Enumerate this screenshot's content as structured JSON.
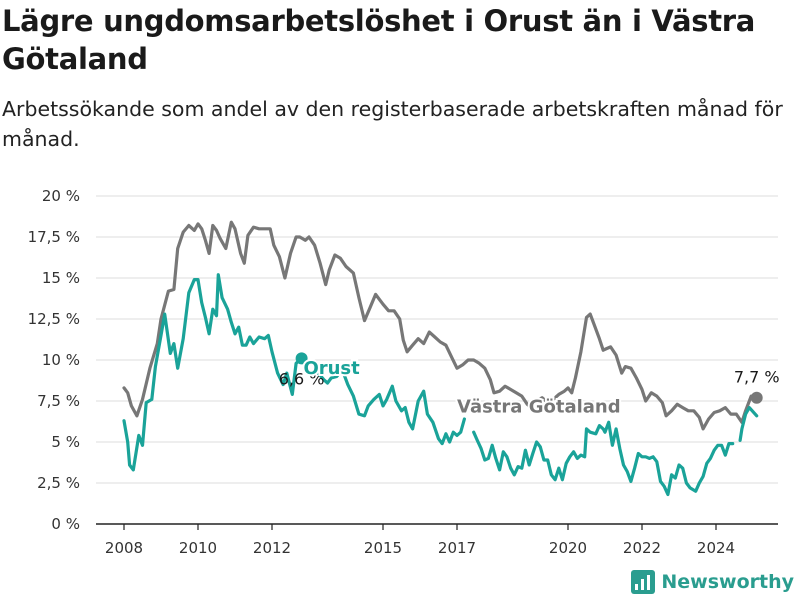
{
  "title": "Lägre ungdomsarbetslöshet i Orust än i Västra Götaland",
  "subtitle": "Arbetssökande som andel av den registerbaserade arbetskraften månad för månad.",
  "brand": "Newsworthy",
  "colors": {
    "vastra_gotaland": "#777777",
    "orust": "#1aa399",
    "grid": "#dddddd",
    "brand": "#2a9d8f"
  },
  "chart_data": {
    "type": "line",
    "title": "",
    "xlabel": "",
    "ylabel": "",
    "xlim": [
      2008,
      2025.5
    ],
    "ylim": [
      0,
      20
    ],
    "y_ticks": [
      0,
      2.5,
      5,
      7.5,
      10,
      12.5,
      15,
      17.5,
      20
    ],
    "y_tick_labels": [
      "0 %",
      "2,5 %",
      "5 %",
      "7,5 %",
      "10 %",
      "12,5 %",
      "15 %",
      "17,5 %",
      "20 %"
    ],
    "x_ticks": [
      2008,
      2010,
      2012,
      2015,
      2017,
      2020,
      2022,
      2024
    ],
    "x_tick_labels": [
      "2008",
      "2010",
      "2012",
      "2015",
      "2017",
      "2020",
      "2022",
      "2024"
    ],
    "grid": true,
    "series": [
      {
        "name": "Västra Götaland",
        "end_label": "7,7 %",
        "points": [
          [
            2008.0,
            8.3
          ],
          [
            2008.1,
            8.0
          ],
          [
            2008.2,
            7.2
          ],
          [
            2008.35,
            6.6
          ],
          [
            2008.5,
            7.6
          ],
          [
            2008.7,
            9.5
          ],
          [
            2008.9,
            11.0
          ],
          [
            2009.0,
            12.5
          ],
          [
            2009.2,
            14.2
          ],
          [
            2009.35,
            14.3
          ],
          [
            2009.45,
            16.8
          ],
          [
            2009.6,
            17.8
          ],
          [
            2009.75,
            18.2
          ],
          [
            2009.9,
            17.9
          ],
          [
            2010.0,
            18.3
          ],
          [
            2010.1,
            18.0
          ],
          [
            2010.2,
            17.3
          ],
          [
            2010.3,
            16.5
          ],
          [
            2010.4,
            18.2
          ],
          [
            2010.5,
            17.9
          ],
          [
            2010.6,
            17.4
          ],
          [
            2010.75,
            16.8
          ],
          [
            2010.9,
            18.4
          ],
          [
            2011.0,
            18.0
          ],
          [
            2011.15,
            16.5
          ],
          [
            2011.25,
            15.9
          ],
          [
            2011.35,
            17.6
          ],
          [
            2011.5,
            18.1
          ],
          [
            2011.65,
            18.0
          ],
          [
            2011.8,
            18.0
          ],
          [
            2011.95,
            18.0
          ],
          [
            2012.05,
            17.0
          ],
          [
            2012.2,
            16.3
          ],
          [
            2012.35,
            15.0
          ],
          [
            2012.5,
            16.5
          ],
          [
            2012.65,
            17.5
          ],
          [
            2012.75,
            17.5
          ],
          [
            2012.9,
            17.3
          ],
          [
            2013.0,
            17.5
          ],
          [
            2013.15,
            17.0
          ],
          [
            2013.3,
            15.9
          ],
          [
            2013.45,
            14.6
          ],
          [
            2013.55,
            15.5
          ],
          [
            2013.7,
            16.4
          ],
          [
            2013.85,
            16.2
          ],
          [
            2014.0,
            15.7
          ],
          [
            2014.2,
            15.3
          ],
          [
            2014.35,
            13.8
          ],
          [
            2014.5,
            12.4
          ],
          [
            2014.65,
            13.2
          ],
          [
            2014.8,
            14.0
          ],
          [
            2015.0,
            13.4
          ],
          [
            2015.15,
            13.0
          ],
          [
            2015.3,
            13.0
          ],
          [
            2015.45,
            12.5
          ],
          [
            2015.55,
            11.2
          ],
          [
            2015.65,
            10.5
          ],
          [
            2015.8,
            10.9
          ],
          [
            2015.95,
            11.3
          ],
          [
            2016.1,
            11.0
          ],
          [
            2016.25,
            11.7
          ],
          [
            2016.4,
            11.4
          ],
          [
            2016.55,
            11.1
          ],
          [
            2016.7,
            10.9
          ],
          [
            2016.85,
            10.2
          ],
          [
            2017.0,
            9.5
          ],
          [
            2017.15,
            9.7
          ],
          [
            2017.3,
            10.0
          ],
          [
            2017.45,
            10.0
          ],
          [
            2017.6,
            9.8
          ],
          [
            2017.75,
            9.5
          ],
          [
            2017.9,
            8.8
          ],
          [
            2018.0,
            8.0
          ],
          [
            2018.15,
            8.1
          ],
          [
            2018.3,
            8.4
          ],
          [
            2018.45,
            8.2
          ],
          [
            2018.6,
            8.0
          ],
          [
            2018.75,
            7.8
          ],
          [
            2018.9,
            7.3
          ],
          [
            2019.0,
            7.1
          ],
          [
            2019.15,
            7.5
          ],
          [
            2019.3,
            7.7
          ],
          [
            2019.45,
            7.4
          ],
          [
            2019.6,
            7.6
          ],
          [
            2019.75,
            7.9
          ],
          [
            2019.9,
            8.1
          ],
          [
            2020.0,
            8.3
          ],
          [
            2020.1,
            8.0
          ],
          [
            2020.2,
            8.9
          ],
          [
            2020.35,
            10.5
          ],
          [
            2020.5,
            12.6
          ],
          [
            2020.6,
            12.8
          ],
          [
            2020.7,
            12.2
          ],
          [
            2020.85,
            11.3
          ],
          [
            2020.95,
            10.6
          ],
          [
            2021.05,
            10.7
          ],
          [
            2021.15,
            10.8
          ],
          [
            2021.3,
            10.3
          ],
          [
            2021.45,
            9.2
          ],
          [
            2021.55,
            9.6
          ],
          [
            2021.7,
            9.5
          ],
          [
            2021.85,
            8.9
          ],
          [
            2022.0,
            8.2
          ],
          [
            2022.1,
            7.5
          ],
          [
            2022.25,
            8.0
          ],
          [
            2022.4,
            7.8
          ],
          [
            2022.55,
            7.4
          ],
          [
            2022.65,
            6.6
          ],
          [
            2022.8,
            6.9
          ],
          [
            2022.95,
            7.3
          ],
          [
            2023.1,
            7.1
          ],
          [
            2023.25,
            6.9
          ],
          [
            2023.4,
            6.9
          ],
          [
            2023.55,
            6.5
          ],
          [
            2023.65,
            5.8
          ],
          [
            2023.8,
            6.4
          ],
          [
            2023.95,
            6.8
          ],
          [
            2024.1,
            6.9
          ],
          [
            2024.25,
            7.1
          ],
          [
            2024.4,
            6.7
          ],
          [
            2024.55,
            6.7
          ],
          [
            2024.7,
            6.2
          ],
          [
            2024.8,
            6.9
          ],
          [
            2024.95,
            7.8
          ],
          [
            2025.1,
            7.7
          ]
        ]
      },
      {
        "name": "Orust",
        "end_label": "6,6 %",
        "points": [
          [
            2008.0,
            6.3
          ],
          [
            2008.1,
            5.0
          ],
          [
            2008.15,
            3.6
          ],
          [
            2008.25,
            3.3
          ],
          [
            2008.4,
            5.4
          ],
          [
            2008.5,
            4.8
          ],
          [
            2008.6,
            7.4
          ],
          [
            2008.75,
            7.6
          ],
          [
            2008.85,
            9.6
          ],
          [
            2009.0,
            11.5
          ],
          [
            2009.1,
            12.8
          ],
          [
            2009.25,
            10.4
          ],
          [
            2009.35,
            11.0
          ],
          [
            2009.45,
            9.5
          ],
          [
            2009.6,
            11.3
          ],
          [
            2009.75,
            14.1
          ],
          [
            2009.9,
            14.9
          ],
          [
            2010.0,
            14.9
          ],
          [
            2010.1,
            13.5
          ],
          [
            2010.2,
            12.6
          ],
          [
            2010.3,
            11.6
          ],
          [
            2010.4,
            13.1
          ],
          [
            2010.5,
            12.7
          ],
          [
            2010.55,
            15.2
          ],
          [
            2010.65,
            13.8
          ],
          [
            2010.8,
            13.1
          ],
          [
            2010.9,
            12.3
          ],
          [
            2011.0,
            11.6
          ],
          [
            2011.1,
            12.0
          ],
          [
            2011.2,
            10.9
          ],
          [
            2011.3,
            10.9
          ],
          [
            2011.4,
            11.4
          ],
          [
            2011.5,
            11.0
          ],
          [
            2011.65,
            11.4
          ],
          [
            2011.8,
            11.3
          ],
          [
            2011.9,
            11.5
          ],
          [
            2012.0,
            10.5
          ],
          [
            2012.15,
            9.2
          ],
          [
            2012.3,
            8.5
          ],
          [
            2012.4,
            9.2
          ],
          [
            2012.55,
            7.9
          ],
          [
            2012.65,
            9.8
          ],
          [
            2012.8,
            10.1
          ]
        ]
      },
      {
        "name": "Orust",
        "points": [
          [
            2013.25,
            9.2
          ],
          [
            2013.4,
            8.8
          ],
          [
            2013.5,
            8.6
          ],
          [
            2013.6,
            8.9
          ],
          [
            2013.75,
            9.0
          ],
          [
            2013.9,
            9.4
          ],
          [
            2014.05,
            8.5
          ],
          [
            2014.2,
            7.8
          ],
          [
            2014.35,
            6.7
          ],
          [
            2014.5,
            6.6
          ],
          [
            2014.6,
            7.2
          ],
          [
            2014.75,
            7.6
          ],
          [
            2014.9,
            7.9
          ],
          [
            2015.0,
            7.2
          ],
          [
            2015.1,
            7.6
          ],
          [
            2015.25,
            8.4
          ],
          [
            2015.35,
            7.5
          ],
          [
            2015.5,
            6.9
          ],
          [
            2015.6,
            7.1
          ],
          [
            2015.7,
            6.2
          ],
          [
            2015.8,
            5.8
          ],
          [
            2015.95,
            7.5
          ],
          [
            2016.1,
            8.1
          ],
          [
            2016.2,
            6.7
          ],
          [
            2016.35,
            6.2
          ],
          [
            2016.5,
            5.2
          ],
          [
            2016.6,
            4.9
          ],
          [
            2016.7,
            5.5
          ],
          [
            2016.8,
            5.0
          ],
          [
            2016.9,
            5.6
          ],
          [
            2017.0,
            5.4
          ],
          [
            2017.1,
            5.6
          ],
          [
            2017.2,
            6.4
          ]
        ]
      },
      {
        "name": "Orust",
        "points": [
          [
            2017.45,
            5.6
          ],
          [
            2017.55,
            5.1
          ],
          [
            2017.65,
            4.6
          ],
          [
            2017.75,
            3.9
          ],
          [
            2017.85,
            4.0
          ],
          [
            2017.95,
            4.8
          ],
          [
            2018.05,
            4.0
          ],
          [
            2018.15,
            3.3
          ],
          [
            2018.25,
            4.4
          ],
          [
            2018.35,
            4.1
          ],
          [
            2018.45,
            3.4
          ],
          [
            2018.55,
            3.0
          ],
          [
            2018.65,
            3.5
          ],
          [
            2018.75,
            3.4
          ],
          [
            2018.85,
            4.5
          ],
          [
            2018.95,
            3.6
          ],
          [
            2019.05,
            4.3
          ],
          [
            2019.15,
            5.0
          ],
          [
            2019.25,
            4.7
          ],
          [
            2019.35,
            3.9
          ],
          [
            2019.45,
            3.9
          ],
          [
            2019.55,
            3.0
          ],
          [
            2019.65,
            2.7
          ],
          [
            2019.75,
            3.4
          ],
          [
            2019.85,
            2.7
          ],
          [
            2019.95,
            3.7
          ],
          [
            2020.05,
            4.1
          ],
          [
            2020.15,
            4.4
          ],
          [
            2020.25,
            4.0
          ],
          [
            2020.35,
            4.2
          ],
          [
            2020.45,
            4.1
          ],
          [
            2020.5,
            5.8
          ],
          [
            2020.6,
            5.6
          ],
          [
            2020.75,
            5.5
          ],
          [
            2020.85,
            6.0
          ],
          [
            2020.95,
            5.8
          ],
          [
            2021.0,
            5.6
          ],
          [
            2021.1,
            6.2
          ],
          [
            2021.2,
            4.8
          ],
          [
            2021.3,
            5.8
          ],
          [
            2021.4,
            4.6
          ],
          [
            2021.5,
            3.6
          ],
          [
            2021.6,
            3.2
          ],
          [
            2021.7,
            2.6
          ],
          [
            2021.8,
            3.4
          ],
          [
            2021.9,
            4.3
          ],
          [
            2022.0,
            4.1
          ],
          [
            2022.1,
            4.1
          ],
          [
            2022.2,
            4.0
          ],
          [
            2022.3,
            4.1
          ],
          [
            2022.4,
            3.8
          ],
          [
            2022.5,
            2.6
          ],
          [
            2022.6,
            2.3
          ],
          [
            2022.7,
            1.8
          ],
          [
            2022.8,
            3.0
          ],
          [
            2022.9,
            2.8
          ],
          [
            2023.0,
            3.6
          ],
          [
            2023.1,
            3.4
          ],
          [
            2023.2,
            2.5
          ],
          [
            2023.3,
            2.2
          ],
          [
            2023.45,
            2.0
          ],
          [
            2023.55,
            2.5
          ],
          [
            2023.65,
            2.9
          ],
          [
            2023.75,
            3.7
          ],
          [
            2023.85,
            4.0
          ],
          [
            2023.95,
            4.5
          ],
          [
            2024.05,
            4.8
          ],
          [
            2024.15,
            4.8
          ],
          [
            2024.25,
            4.2
          ],
          [
            2024.35,
            4.9
          ],
          [
            2024.45,
            4.9
          ]
        ]
      },
      {
        "name": "Orust",
        "points": [
          [
            2024.65,
            5.1
          ],
          [
            2024.7,
            5.8
          ],
          [
            2024.8,
            6.7
          ],
          [
            2024.9,
            7.1
          ],
          [
            2025.1,
            6.6
          ]
        ]
      }
    ],
    "series_labels": [
      {
        "name": "Orust",
        "x": 2012.85,
        "y": 9.15
      },
      {
        "name": "Västra Götaland",
        "x": 2017.0,
        "y": 6.8
      }
    ]
  }
}
